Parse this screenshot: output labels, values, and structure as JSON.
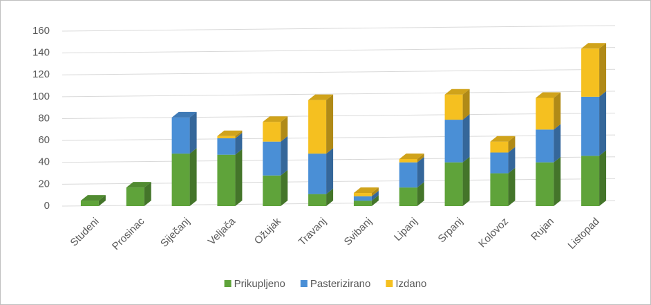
{
  "chart_data": {
    "type": "bar3d_stacked",
    "categories": [
      "Studeni",
      "Prosinac",
      "Siječanj",
      "Veljača",
      "Ožujak",
      "Travanj",
      "Svibanj",
      "Lipanj",
      "Srpanj",
      "Kolovoz",
      "Rujan",
      "Listopad"
    ],
    "series": [
      {
        "name": "Prikupljeno",
        "color": "#5fa33a",
        "values": [
          5,
          17,
          48,
          47,
          28,
          11,
          5,
          17,
          40,
          30,
          40,
          46
        ]
      },
      {
        "name": "Pasterizirano",
        "color": "#4a8fd6",
        "values": [
          0,
          0,
          33,
          15,
          31,
          37,
          4,
          23,
          39,
          19,
          30,
          54
        ]
      },
      {
        "name": "Izdano",
        "color": "#f5c020",
        "values": [
          0,
          0,
          0,
          2,
          18,
          49,
          3,
          3,
          23,
          10,
          29,
          44
        ]
      }
    ],
    "ylim": [
      0,
      160
    ],
    "yticks": [
      0,
      20,
      40,
      60,
      80,
      100,
      120,
      140,
      160
    ],
    "grid": true,
    "legend": "bottom"
  }
}
